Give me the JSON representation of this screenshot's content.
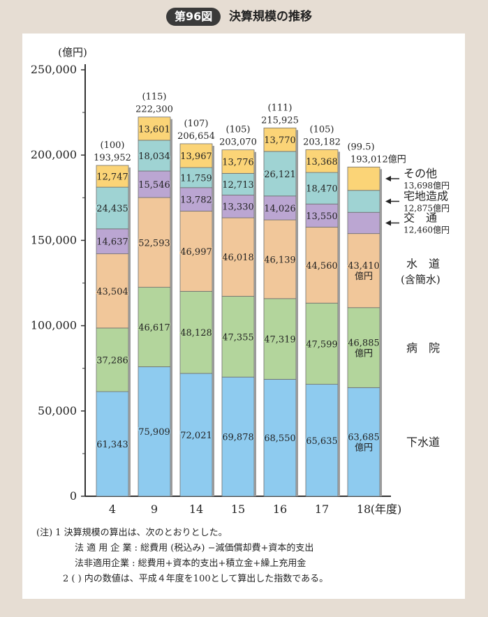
{
  "figure": {
    "label": "第96図",
    "title": "決算規模の推移"
  },
  "chart_data": {
    "type": "bar",
    "stacked": true,
    "unit_label": "(億円)",
    "xlabel": "(年度)",
    "ylim": [
      0,
      250000
    ],
    "y_ticks": [
      "0",
      "50,000",
      "100,000",
      "150,000",
      "200,000",
      "250,000"
    ],
    "categories": [
      "4",
      "9",
      "14",
      "15",
      "16",
      "17",
      "18"
    ],
    "series": [
      {
        "name": "下水道",
        "color": "#8ecbef",
        "values": [
          61343,
          75909,
          72021,
          69878,
          68550,
          65635,
          63685
        ],
        "labels": [
          "61,343",
          "75,909",
          "72,021",
          "69,878",
          "68,550",
          "65,635",
          "63,685\n億円"
        ]
      },
      {
        "name": "病院",
        "color": "#b3d59c",
        "values": [
          37286,
          46617,
          48128,
          47355,
          47319,
          47599,
          46885
        ],
        "labels": [
          "37,286",
          "46,617",
          "48,128",
          "47,355",
          "47,319",
          "47,599",
          "46,885\n億円"
        ]
      },
      {
        "name": "水道(含簡水)",
        "color": "#f1c79a",
        "values": [
          43504,
          52593,
          46997,
          46018,
          46139,
          44560,
          43410
        ],
        "labels": [
          "43,504",
          "52,593",
          "46,997",
          "46,018",
          "46,139",
          "44,560",
          "43,410\n億円"
        ]
      },
      {
        "name": "交通",
        "color": "#bba6d2",
        "values": [
          14637,
          15546,
          13782,
          13330,
          14026,
          13550,
          12460
        ],
        "labels": [
          "14,637",
          "15,546",
          "13,782",
          "13,330",
          "14,026",
          "13,550",
          ""
        ]
      },
      {
        "name": "宅地造成",
        "color": "#9fd3d3",
        "values": [
          24435,
          18034,
          11759,
          12713,
          26121,
          18470,
          12875
        ],
        "labels": [
          "24,435",
          "18,034",
          "11,759",
          "12,713",
          "26,121",
          "18,470",
          ""
        ]
      },
      {
        "name": "その他",
        "color": "#fbd477",
        "values": [
          12747,
          13601,
          13967,
          13776,
          13770,
          13368,
          13698
        ],
        "labels": [
          "12,747",
          "13,601",
          "13,967",
          "13,776",
          "13,770",
          "13,368",
          ""
        ]
      }
    ],
    "totals": [
      "193,952",
      "222,300",
      "206,654",
      "203,070",
      "215,925",
      "203,182",
      "193,012億円"
    ],
    "indices": [
      "(100)",
      "(115)",
      "(107)",
      "(105)",
      "(111)",
      "(105)",
      "(99.5)"
    ],
    "right_legend": [
      {
        "name": "その他",
        "value": "13,698億円",
        "arrow": true
      },
      {
        "name": "宅地造成",
        "value": "12,875億円",
        "arrow": true
      },
      {
        "name": "交　通",
        "value": "12,460億円",
        "arrow": true
      },
      {
        "name": "水　道",
        "sub": "(含簡水)"
      },
      {
        "name": "病　院"
      },
      {
        "name": "下水道"
      }
    ]
  },
  "notes": {
    "line1": "(注)  1    決算規模の算出は、次のとおりとした。",
    "line2": "法 適 用 企 業 : 総費用 (税込み) −減価償却費+資本的支出",
    "line3": "法非適用企業 : 総費用+資本的支出+積立金+繰上充用金",
    "line4": "2    (    ) 内の数値は、平成４年度を100として算出した指数である。"
  }
}
